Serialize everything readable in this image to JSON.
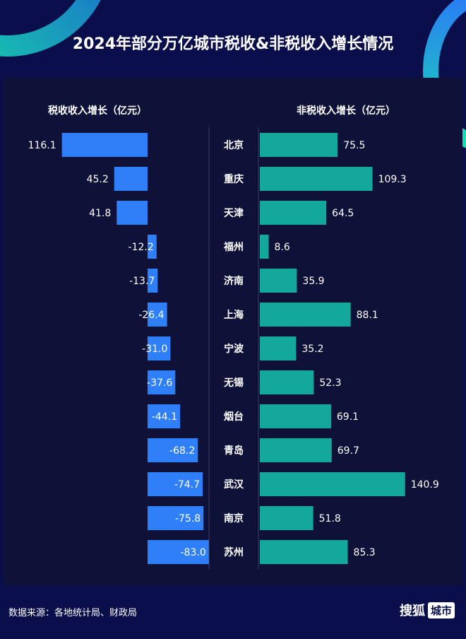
{
  "title": "2024年部分万亿城市税收&非税收入增长情况",
  "footer": {
    "source": "数据来源：各地统计局、财政局",
    "brand": "搜狐",
    "brand_tag": "城市"
  },
  "colors": {
    "background": "#0a0e4a",
    "tax_bar": "#2f80f8",
    "nontax_bar": "#14a89c"
  },
  "chart_data": {
    "type": "bar",
    "orientation": "horizontal",
    "categories": [
      "北京",
      "重庆",
      "天津",
      "福州",
      "济南",
      "上海",
      "宁波",
      "无锡",
      "烟台",
      "青岛",
      "武汉",
      "南京",
      "苏州"
    ],
    "series": [
      {
        "name": "税收收入增长（亿元）",
        "values": [
          116.1,
          45.2,
          41.8,
          -12.2,
          -13.7,
          -26.4,
          -31.0,
          -37.6,
          -44.1,
          -68.2,
          -74.7,
          -75.8,
          -83.0
        ]
      },
      {
        "name": "非税收入增长（亿元）",
        "values": [
          75.5,
          109.3,
          64.5,
          8.6,
          35.9,
          88.1,
          35.2,
          52.3,
          69.1,
          69.7,
          140.9,
          51.8,
          85.3
        ]
      }
    ]
  }
}
